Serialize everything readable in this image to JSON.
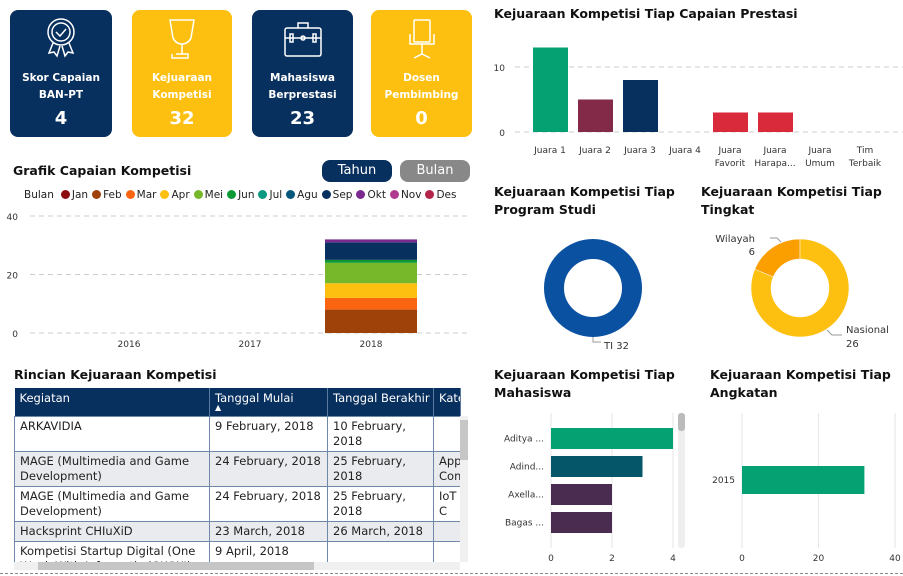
{
  "cards": [
    {
      "label1": "Skor Capaian",
      "label2": "BAN-PT",
      "value": "4",
      "icon": "badge-check-icon",
      "color": "#08305e"
    },
    {
      "label1": "Kejuaraan",
      "label2": "Kompetisi",
      "value": "32",
      "icon": "trophy-icon",
      "color": "#fdc010"
    },
    {
      "label1": "Mahasiswa",
      "label2": "Berprestasi",
      "value": "23",
      "icon": "briefcase-icon",
      "color": "#08305e"
    },
    {
      "label1": "Dosen",
      "label2": "Pembimbing",
      "value": "0",
      "icon": "chair-icon",
      "color": "#fdc010"
    }
  ],
  "grafik": {
    "title": "Grafik Capaian Kompetisi",
    "btn_tahun": "Tahun",
    "btn_bulan": "Bulan",
    "legend_title": "Bulan",
    "chart_data": {
      "type": "bar",
      "stacked": true,
      "categories": [
        "2016",
        "2017",
        "2018"
      ],
      "ylim": [
        0,
        40
      ],
      "yticks": [
        0,
        20,
        40
      ],
      "grid": true,
      "legend": "top",
      "series": [
        {
          "name": "Jan",
          "color": "#8b0d10",
          "values": [
            0,
            0,
            0
          ]
        },
        {
          "name": "Feb",
          "color": "#9e420a",
          "values": [
            0,
            0,
            8
          ]
        },
        {
          "name": "Mar",
          "color": "#fb6410",
          "values": [
            0,
            0,
            4
          ]
        },
        {
          "name": "Apr",
          "color": "#fdc010",
          "values": [
            0,
            0,
            5
          ]
        },
        {
          "name": "Mei",
          "color": "#77b82a",
          "values": [
            0,
            0,
            7
          ]
        },
        {
          "name": "Jun",
          "color": "#0b9a34",
          "values": [
            0,
            0,
            1
          ]
        },
        {
          "name": "Jul",
          "color": "#0a9882",
          "values": [
            0,
            0,
            0
          ]
        },
        {
          "name": "Agu",
          "color": "#06587a",
          "values": [
            0,
            0,
            0
          ]
        },
        {
          "name": "Sep",
          "color": "#08305e",
          "values": [
            0,
            0,
            6
          ]
        },
        {
          "name": "Okt",
          "color": "#7a2a8e",
          "values": [
            0,
            0,
            1
          ]
        },
        {
          "name": "Nov",
          "color": "#b03a8e",
          "values": [
            0,
            0,
            0
          ]
        },
        {
          "name": "Des",
          "color": "#b3264a",
          "values": [
            0,
            0,
            0
          ]
        }
      ]
    }
  },
  "table": {
    "title": "Rincian Kejuaraan Kompetisi",
    "columns": [
      "Kegiatan",
      "Tanggal Mulai",
      "Tanggal Berakhir",
      "Kate"
    ],
    "sort_indicator": "▲",
    "rows": [
      [
        "ARKAVIDIA",
        "9 February, 2018",
        "10 February, 2018",
        ""
      ],
      [
        "MAGE (Multimedia and Game Development)",
        "24 February, 2018",
        "25 February, 2018",
        "App Com"
      ],
      [
        "MAGE (Multimedia and Game Development)",
        "24 February, 2018",
        "25 February, 2018",
        "IoT C"
      ],
      [
        "Hacksprint CHIuXiD",
        "23 March, 2018",
        "26 March, 2018",
        ""
      ],
      [
        "Kompetisi Startup Digital (One Week With Informatic (OWWI)",
        "9 April, 2018",
        "",
        ""
      ]
    ]
  },
  "capaian": {
    "title": "Kejuaraan Kompetisi Tiap Capaian Prestasi",
    "chart_data": {
      "type": "bar",
      "categories": [
        "Juara 1",
        "Juara 2",
        "Juara 3",
        "Juara 4",
        "Juara Favorit",
        "Juara Harapa...",
        "Juara Umum",
        "Tim Terbaik"
      ],
      "values": [
        13,
        5,
        8,
        0,
        3,
        3,
        0,
        0
      ],
      "colors": [
        "#06a173",
        "#832a48",
        "#08305e",
        "#d92a3c",
        "#d92a3c",
        "#d92a3c",
        "#d92a3c",
        "#d92a3c"
      ],
      "yticks": [
        0,
        10
      ],
      "ylim": [
        0,
        13
      ],
      "grid": true
    }
  },
  "prodi": {
    "title1": "Kejuaraan Kompetisi Tiap",
    "title2": "Program Studi",
    "chart_data": {
      "type": "pie",
      "donut": true,
      "labels": [
        "TI"
      ],
      "values": [
        32
      ],
      "colors": [
        "#0a51a1"
      ]
    },
    "label": "TI 32"
  },
  "tingkat": {
    "title1": "Kejuaraan Kompetisi Tiap",
    "title2": "Tingkat",
    "chart_data": {
      "type": "pie",
      "donut": true,
      "labels": [
        "Wilayah",
        "Nasional"
      ],
      "values": [
        6,
        26
      ],
      "colors": [
        "#fb9e00",
        "#fdc010"
      ]
    }
  },
  "mahasiswa": {
    "title1": "Kejuaraan Kompetisi Tiap",
    "title2": "Mahasiswa",
    "chart_data": {
      "type": "bar",
      "orientation": "horizontal",
      "categories": [
        "Aditya ...",
        "Adind...",
        "Axella...",
        "Bagas ..."
      ],
      "values": [
        4,
        3,
        2,
        2
      ],
      "colors": [
        "#06a173",
        "#06566a",
        "#4a2c50",
        "#4a2c50"
      ],
      "xticks": [
        0,
        2,
        4
      ],
      "xlim": [
        0,
        4
      ]
    }
  },
  "angkatan": {
    "title1": "Kejuaraan Kompetisi Tiap",
    "title2": "Angkatan",
    "chart_data": {
      "type": "bar",
      "orientation": "horizontal",
      "categories": [
        "2015"
      ],
      "values": [
        32
      ],
      "colors": [
        "#06a173"
      ],
      "xticks": [
        0,
        20,
        40
      ],
      "xlim": [
        0,
        40
      ]
    }
  }
}
